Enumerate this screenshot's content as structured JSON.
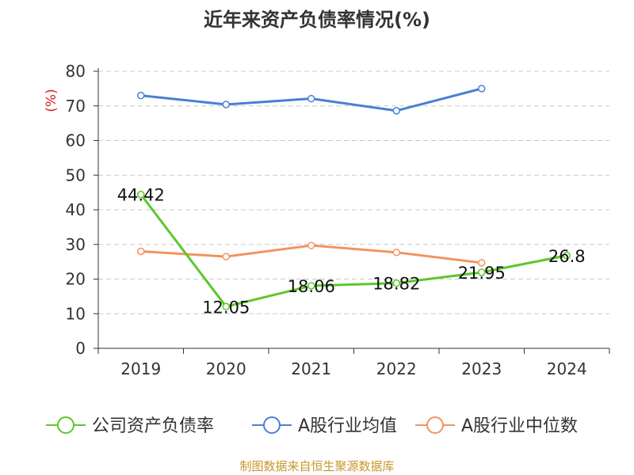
{
  "chart_data": {
    "type": "line",
    "title": "近年来资产负债率情况(%)",
    "ylabel": "(%)",
    "xlabel": "",
    "x": [
      "2019",
      "2020",
      "2021",
      "2022",
      "2023",
      "2024"
    ],
    "ylim": [
      0,
      80
    ],
    "yticks": [
      0,
      10,
      20,
      30,
      40,
      50,
      60,
      70,
      80
    ],
    "grid": true,
    "legend_position": "bottom",
    "series": [
      {
        "name": "公司资产负债率",
        "color": "#5cc72b",
        "values": [
          44.42,
          12.05,
          18.06,
          18.82,
          21.95,
          26.8
        ],
        "labels": [
          "44.42",
          "12.05",
          "18.06",
          "18.82",
          "21.95",
          "26.8"
        ]
      },
      {
        "name": "A股行业均值",
        "color": "#4a7fd6",
        "values": [
          73.0,
          70.4,
          72.1,
          68.6,
          75.0,
          null
        ]
      },
      {
        "name": "A股行业中位数",
        "color": "#f5925e",
        "values": [
          28.0,
          26.5,
          29.7,
          27.7,
          24.7,
          null
        ]
      }
    ],
    "source": "制图数据来自恒生聚源数据库",
    "source_color": "#c8952c",
    "ylabel_color": "#d42020"
  }
}
